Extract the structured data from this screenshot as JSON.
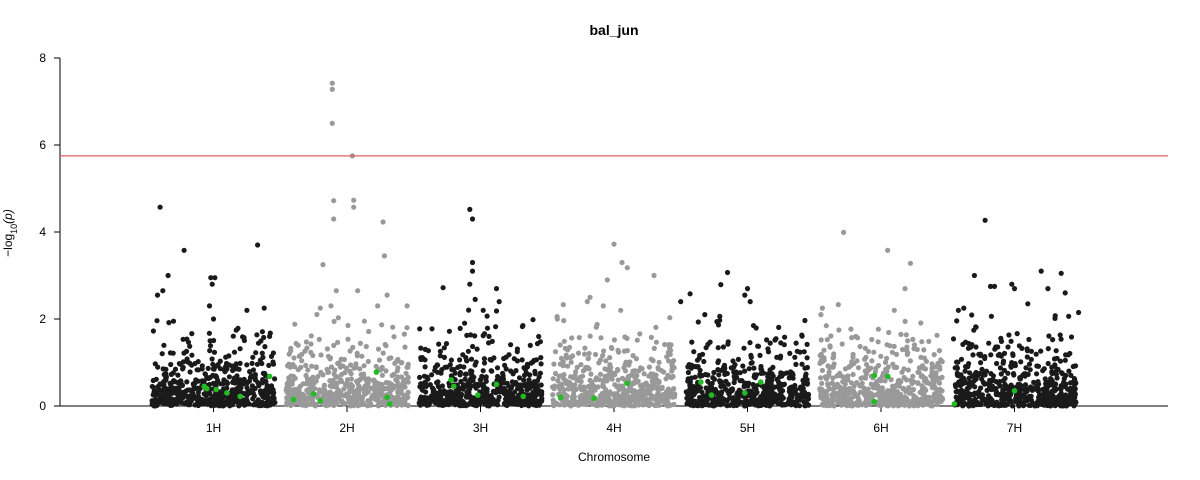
{
  "chart_data": {
    "type": "scatter",
    "title": "bal_jun",
    "xlabel": "Chromosome",
    "ylabel_prefix": "−log",
    "ylabel_sub": "10",
    "ylabel_suffix": "(p)",
    "ylim": [
      0,
      8
    ],
    "yticks": [
      0,
      2,
      4,
      6,
      8
    ],
    "threshold": 5.75,
    "colors": {
      "odd": "#1a1a1a",
      "even": "#999999",
      "highlight": "#22bb22",
      "threshold": "#e06060"
    },
    "chromosomes": [
      {
        "label": "1H",
        "start": 0.0,
        "end": 1.0,
        "center": 0.5
      },
      {
        "label": "2H",
        "start": 1.0,
        "end": 2.0,
        "center": 1.5
      },
      {
        "label": "3H",
        "start": 2.0,
        "end": 3.0,
        "center": 2.5
      },
      {
        "label": "4H",
        "start": 3.0,
        "end": 4.0,
        "center": 3.5
      },
      {
        "label": "5H",
        "start": 4.0,
        "end": 5.0,
        "center": 4.5
      },
      {
        "label": "6H",
        "start": 5.0,
        "end": 6.0,
        "center": 5.5
      },
      {
        "label": "7H",
        "start": 6.0,
        "end": 7.0,
        "center": 6.5
      }
    ],
    "peaks": [
      [
        0.1,
        4.57
      ],
      [
        0.08,
        2.55
      ],
      [
        0.12,
        2.65
      ],
      [
        0.16,
        3.0
      ],
      [
        0.28,
        3.58
      ],
      [
        0.2,
        1.95
      ],
      [
        0.48,
        2.95
      ],
      [
        0.51,
        2.95
      ],
      [
        0.49,
        2.8
      ],
      [
        0.47,
        2.3
      ],
      [
        0.5,
        2.0
      ],
      [
        0.83,
        3.7
      ],
      [
        0.75,
        2.2
      ],
      [
        0.92,
        1.6
      ],
      [
        0.88,
        2.25
      ],
      [
        1.3,
        2.25
      ],
      [
        1.32,
        3.25
      ],
      [
        1.38,
        2.3
      ],
      [
        1.4,
        4.72
      ],
      [
        1.4,
        4.3
      ],
      [
        1.39,
        6.5
      ],
      [
        1.39,
        7.28
      ],
      [
        1.39,
        7.42
      ],
      [
        1.55,
        4.73
      ],
      [
        1.55,
        4.57
      ],
      [
        1.54,
        5.75
      ],
      [
        1.42,
        2.65
      ],
      [
        1.58,
        2.65
      ],
      [
        1.63,
        1.95
      ],
      [
        1.73,
        2.3
      ],
      [
        1.77,
        4.23
      ],
      [
        1.78,
        3.45
      ],
      [
        1.8,
        2.55
      ],
      [
        1.95,
        2.3
      ],
      [
        2.22,
        2.72
      ],
      [
        2.42,
        4.52
      ],
      [
        2.44,
        4.3
      ],
      [
        2.44,
        3.3
      ],
      [
        2.44,
        3.1
      ],
      [
        2.42,
        2.8
      ],
      [
        2.46,
        2.45
      ],
      [
        2.52,
        2.2
      ],
      [
        2.62,
        2.7
      ],
      [
        2.64,
        2.4
      ],
      [
        3.12,
        2.33
      ],
      [
        3.3,
        2.4
      ],
      [
        3.32,
        2.5
      ],
      [
        3.42,
        2.3
      ],
      [
        3.45,
        2.9
      ],
      [
        3.5,
        3.72
      ],
      [
        3.56,
        3.3
      ],
      [
        3.6,
        3.18
      ],
      [
        3.55,
        2.2
      ],
      [
        3.8,
        3.0
      ],
      [
        4.0,
        2.4
      ],
      [
        4.07,
        2.58
      ],
      [
        4.18,
        2.1
      ],
      [
        4.3,
        2.79
      ],
      [
        4.35,
        3.07
      ],
      [
        4.5,
        2.7
      ],
      [
        4.48,
        2.55
      ],
      [
        4.52,
        2.4
      ],
      [
        5.22,
        3.99
      ],
      [
        5.18,
        2.33
      ],
      [
        5.05,
        2.1
      ],
      [
        5.55,
        3.58
      ],
      [
        5.72,
        3.28
      ],
      [
        5.68,
        2.7
      ],
      [
        5.6,
        2.2
      ],
      [
        6.08,
        2.2
      ],
      [
        6.12,
        2.25
      ],
      [
        6.2,
        3.0
      ],
      [
        6.28,
        4.27
      ],
      [
        6.32,
        2.75
      ],
      [
        6.35,
        2.75
      ],
      [
        6.48,
        2.8
      ],
      [
        6.5,
        2.7
      ],
      [
        6.6,
        2.35
      ],
      [
        6.7,
        3.1
      ],
      [
        6.75,
        2.7
      ],
      [
        6.85,
        3.05
      ],
      [
        6.88,
        2.6
      ],
      [
        6.98,
        2.15
      ]
    ],
    "highlights": [
      [
        0.43,
        0.45
      ],
      [
        0.45,
        0.4
      ],
      [
        0.52,
        0.38
      ],
      [
        0.6,
        0.3
      ],
      [
        0.7,
        0.22
      ],
      [
        0.92,
        0.68
      ],
      [
        1.1,
        0.15
      ],
      [
        1.25,
        0.28
      ],
      [
        1.3,
        0.12
      ],
      [
        1.72,
        0.78
      ],
      [
        1.8,
        0.2
      ],
      [
        1.82,
        0.05
      ],
      [
        2.28,
        0.6
      ],
      [
        2.3,
        0.45
      ],
      [
        2.48,
        0.25
      ],
      [
        2.62,
        0.5
      ],
      [
        2.82,
        0.22
      ],
      [
        3.1,
        0.2
      ],
      [
        3.35,
        0.18
      ],
      [
        3.6,
        0.52
      ],
      [
        4.15,
        0.55
      ],
      [
        4.23,
        0.25
      ],
      [
        4.48,
        0.3
      ],
      [
        4.6,
        0.55
      ],
      [
        5.45,
        0.7
      ],
      [
        5.55,
        0.68
      ],
      [
        5.45,
        0.1
      ],
      [
        6.05,
        0.05
      ],
      [
        6.5,
        0.35
      ]
    ]
  }
}
